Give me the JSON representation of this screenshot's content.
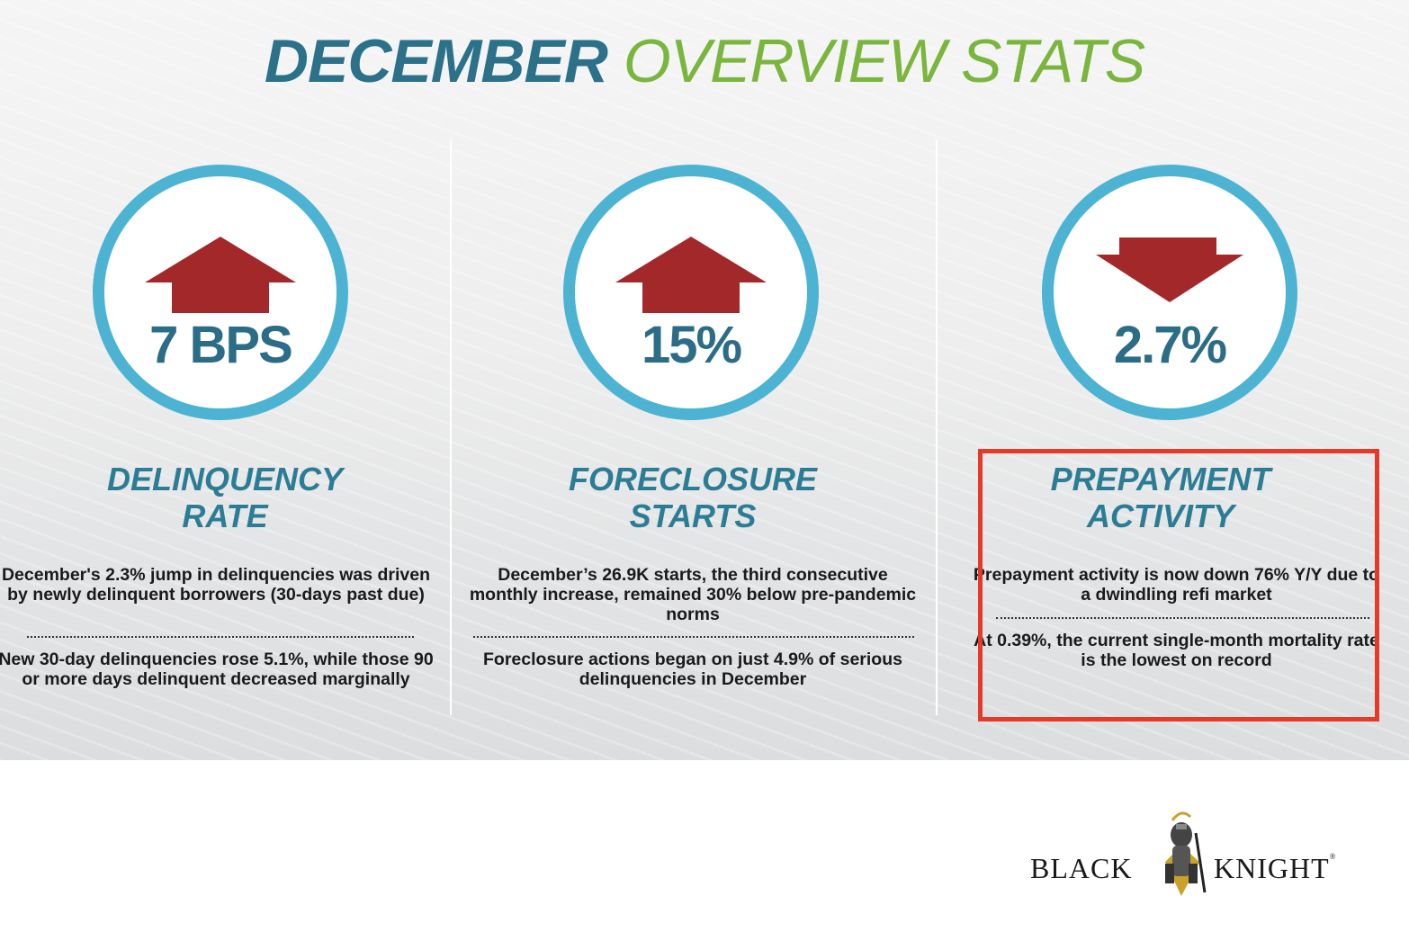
{
  "title": {
    "part1": "DECEMBER",
    "part2": "OVERVIEW STATS"
  },
  "colors": {
    "teal": "#2b6d86",
    "green": "#7ab63e",
    "ring": "#4db3d3",
    "arrow": "#a3282a",
    "highlight": "#e53a2a"
  },
  "columns": [
    {
      "stat": "7 BPS",
      "arrow": "up-arrow",
      "heading_line1": "DELINQUENCY",
      "heading_line2": "RATE",
      "text1": "December's 2.3% jump in delinquencies was driven by newly delinquent borrowers (30-days past due)",
      "text2": "New 30-day delinquencies rose 5.1%, while those 90 or more days delinquent decreased marginally"
    },
    {
      "stat": "15%",
      "arrow": "up-arrow",
      "heading_line1": "FORECLOSURE",
      "heading_line2": "STARTS",
      "text1": "December’s 26.9K starts, the third consecutive monthly increase, remained 30% below pre-pandemic norms",
      "text2": "Foreclosure actions began on just 4.9% of serious delinquencies in December"
    },
    {
      "stat": "2.7%",
      "arrow": "down-arrow",
      "heading_line1": "PREPAYMENT",
      "heading_line2": "ACTIVITY",
      "text1": "Prepayment activity is now down 76% Y/Y due to a dwindling refi market",
      "text2": "At 0.39%, the current single-month mortality rate is the lowest on record"
    }
  ],
  "logo": {
    "left": "BLACK",
    "right": "KNIGHT",
    "reg": "®",
    "icon": "knight-icon"
  }
}
